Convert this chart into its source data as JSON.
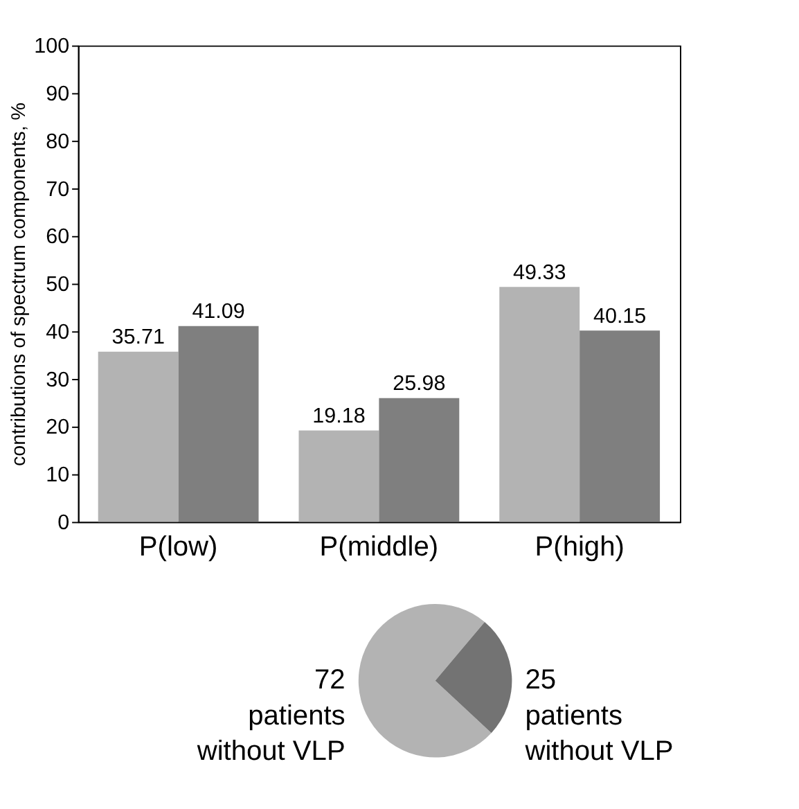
{
  "chart_data": [
    {
      "type": "bar",
      "ylabel": "contributions of spectrum components, %",
      "categories": [
        "P(low)",
        "P(middle)",
        "P(high)"
      ],
      "series": [
        {
          "color": "#b3b3b3",
          "values": [
            35.71,
            19.18,
            49.33
          ]
        },
        {
          "color": "#7f7f7f",
          "values": [
            41.09,
            25.98,
            40.15
          ]
        }
      ],
      "ylim": [
        0,
        100
      ],
      "yticks": [
        0,
        10,
        20,
        30,
        40,
        50,
        60,
        70,
        80,
        90,
        100
      ],
      "data_labels": true,
      "grid": false,
      "legend": false
    },
    {
      "type": "pie",
      "categories": [
        "patients without VLP",
        "patients without VLP"
      ],
      "values": [
        72,
        25
      ],
      "colors": [
        "#b3b3b3",
        "#737373"
      ],
      "data_labels": true
    }
  ]
}
